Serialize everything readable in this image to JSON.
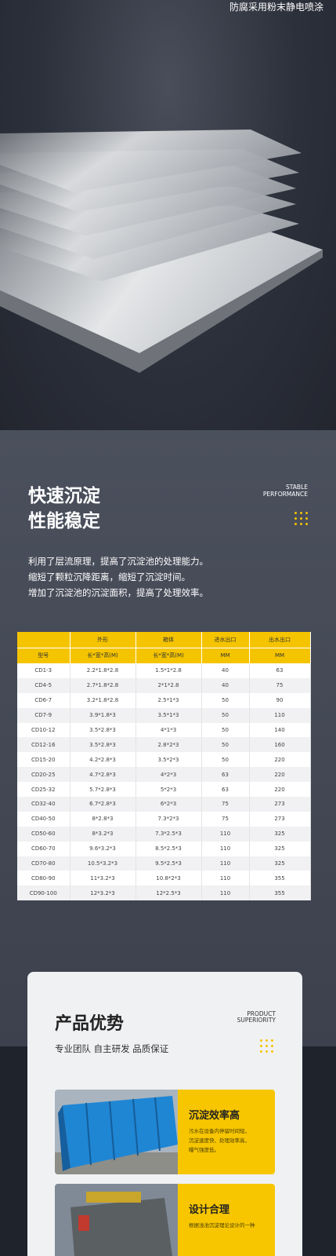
{
  "top": {
    "caption": "防腐采用粉末静电喷涂"
  },
  "performance": {
    "title_lines": [
      "快速沉淀",
      "性能稳定"
    ],
    "en_lines": [
      "STABLE",
      "PERFORMANCE"
    ],
    "paragraph": [
      "利用了层流原理，提高了沉淀池的处理能力。",
      "缩短了颗粒沉降距离，缩短了沉淀时间。",
      "增加了沉淀池的沉淀面积，提高了处理效率。"
    ]
  },
  "table": {
    "group_row": [
      "外形",
      "箱体",
      "进水出口",
      "出水出口"
    ],
    "unit_row": [
      "型号",
      "长*宽*高(M)",
      "长*宽*高(M)",
      "MM",
      "MM"
    ],
    "rows": [
      [
        "CD1-3",
        "2.2*1.8*2.8",
        "1.5*1*2.8",
        "40",
        "63"
      ],
      [
        "CD4-5",
        "2.7*1.8*2.8",
        "2*1*2.8",
        "40",
        "75"
      ],
      [
        "CD6-7",
        "3.2*1.8*2.8",
        "2.5*1*3",
        "50",
        "90"
      ],
      [
        "CD7-9",
        "3.9*1.8*3",
        "3.5*1*3",
        "50",
        "110"
      ],
      [
        "CD10-12",
        "3.5*2.8*3",
        "4*1*3",
        "50",
        "140"
      ],
      [
        "CD12-16",
        "3.5*2.8*3",
        "2.8*2*3",
        "50",
        "160"
      ],
      [
        "CD15-20",
        "4.2*2.8*3",
        "3.5*2*3",
        "50",
        "220"
      ],
      [
        "CD20-25",
        "4.7*2.8*3",
        "4*2*3",
        "63",
        "220"
      ],
      [
        "CD25-32",
        "5.7*2.8*3",
        "5*2*3",
        "63",
        "220"
      ],
      [
        "CD32-40",
        "6.7*2.8*3",
        "6*2*3",
        "75",
        "273"
      ],
      [
        "CD40-50",
        "8*2.8*3",
        "7.3*2*3",
        "75",
        "273"
      ],
      [
        "CD50-60",
        "8*3.2*3",
        "7.3*2.5*3",
        "110",
        "325"
      ],
      [
        "CD60-70",
        "9.6*3.2*3",
        "8.5*2.5*3",
        "110",
        "325"
      ],
      [
        "CD70-80",
        "10.5*3.2*3",
        "9.5*2.5*3",
        "110",
        "325"
      ],
      [
        "CD80-90",
        "11*3.2*3",
        "10.8*2*3",
        "110",
        "355"
      ],
      [
        "CD90-100",
        "12*3.2*3",
        "12*2.5*3",
        "110",
        "355"
      ]
    ]
  },
  "advantages": {
    "title": "产品优势",
    "en_lines": [
      "PRODUCT",
      "SUPERIORITY"
    ],
    "subtitle": "专业团队 自主研发 品质保证",
    "cards": [
      {
        "title": "沉淀效率高",
        "text_lines": [
          "污水在设备内停留时间短，",
          "沉淀速度快、处理效率高，",
          "曝气强度低。"
        ]
      },
      {
        "title": "设计合理",
        "text_lines": [
          "根据浅池沉淀理论设计的一种"
        ]
      }
    ]
  }
}
